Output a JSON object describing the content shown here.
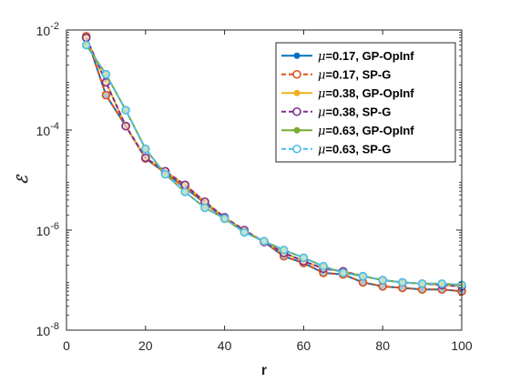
{
  "chart_data": {
    "type": "line",
    "xlabel": "r",
    "ylabel": "ℰ",
    "xlim": [
      0,
      100
    ],
    "ylim": [
      1e-08,
      0.01
    ],
    "yscale": "log",
    "xticks": [
      0,
      20,
      40,
      60,
      80,
      100
    ],
    "yticks": [
      {
        "value": 1e-08,
        "base": "10",
        "exp": "-8"
      },
      {
        "value": 1e-06,
        "base": "10",
        "exp": "-6"
      },
      {
        "value": 0.0001,
        "base": "10",
        "exp": "-4"
      },
      {
        "value": 0.01,
        "base": "10",
        "exp": "-2"
      }
    ],
    "grid": false,
    "legend_position": "top-right",
    "x": [
      5,
      10,
      15,
      20,
      25,
      30,
      35,
      40,
      45,
      50,
      55,
      60,
      65,
      70,
      75,
      80,
      85,
      90,
      95,
      100
    ],
    "series": [
      {
        "mu": "μ",
        "name": "=0.17, GP-OpInf",
        "color": "#0072BD",
        "style": "solid",
        "values": [
          0.0075,
          0.0005,
          0.00012,
          2.7e-05,
          1.4e-05,
          7e-06,
          3.5e-06,
          1.7e-06,
          9.5e-07,
          5.8e-07,
          3e-07,
          2.2e-07,
          1.4e-07,
          1.3e-07,
          9e-08,
          7.5e-08,
          7e-08,
          6.5e-08,
          6.5e-08,
          6e-08
        ]
      },
      {
        "mu": "μ",
        "name": "=0.17, SP-G",
        "color": "#D95319",
        "style": "dashed",
        "values": [
          0.0075,
          0.0005,
          0.00012,
          2.7e-05,
          1.4e-05,
          7e-06,
          3.5e-06,
          1.7e-06,
          9.5e-07,
          5.8e-07,
          3e-07,
          2.2e-07,
          1.4e-07,
          1.3e-07,
          9e-08,
          7.5e-08,
          7e-08,
          6.5e-08,
          6.5e-08,
          6e-08
        ]
      },
      {
        "mu": "μ",
        "name": "=0.38, GP-OpInf",
        "color": "#EDB120",
        "style": "solid",
        "values": [
          0.007,
          0.0009,
          0.00012,
          2.8e-05,
          1.5e-05,
          8e-06,
          3.7e-06,
          1.8e-06,
          1e-06,
          5.8e-07,
          3.5e-07,
          2.4e-07,
          1.7e-07,
          1.5e-07,
          1.2e-07,
          1e-07,
          9e-08,
          8.5e-08,
          8e-08,
          7.5e-08
        ]
      },
      {
        "mu": "μ",
        "name": "=0.38, SP-G",
        "color": "#7E2F8E",
        "style": "dashed",
        "values": [
          0.007,
          0.0009,
          0.00012,
          2.8e-05,
          1.5e-05,
          8e-06,
          3.7e-06,
          1.8e-06,
          1e-06,
          5.8e-07,
          3.5e-07,
          2.4e-07,
          1.7e-07,
          1.5e-07,
          1.2e-07,
          1e-07,
          9e-08,
          8.5e-08,
          8e-08,
          7.5e-08
        ]
      },
      {
        "mu": "μ",
        "name": "=0.63, GP-OpInf",
        "color": "#77AC30",
        "style": "solid",
        "values": [
          0.005,
          0.0013,
          0.00025,
          4.2e-05,
          1.3e-05,
          5.8e-06,
          2.8e-06,
          1.7e-06,
          9e-07,
          6e-07,
          4e-07,
          2.8e-07,
          1.9e-07,
          1.4e-07,
          1.2e-07,
          1e-07,
          9e-08,
          8.5e-08,
          8.5e-08,
          8e-08
        ]
      },
      {
        "mu": "μ",
        "name": "=0.63, SP-G",
        "color": "#4DBEEE",
        "style": "dashed",
        "values": [
          0.005,
          0.0013,
          0.00025,
          4.2e-05,
          1.3e-05,
          5.8e-06,
          2.8e-06,
          1.7e-06,
          9e-07,
          6e-07,
          4e-07,
          2.8e-07,
          1.9e-07,
          1.4e-07,
          1.2e-07,
          1e-07,
          9e-08,
          8.5e-08,
          8.5e-08,
          8e-08
        ]
      }
    ]
  }
}
